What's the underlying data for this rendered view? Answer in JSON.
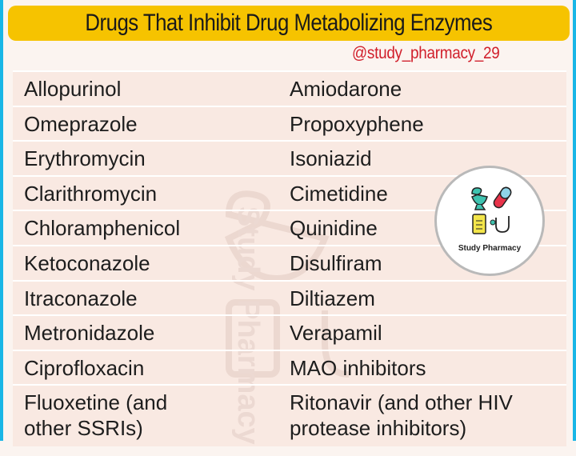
{
  "title": "Drugs That Inhibit Drug Metabolizing Enzymes",
  "handle": "@study_pharmacy_29",
  "watermark": "Study Pharmacy",
  "badge": {
    "label": "Study Pharmacy",
    "icons": [
      "bowl-of-hygieia-icon",
      "pill-capsule-icon",
      "clipboard-icon",
      "stethoscope-icon"
    ]
  },
  "colors": {
    "title_bg": "#f6c300",
    "handle": "#d1202c",
    "border": "#19b6e6",
    "table_bg": "#f9e9e2"
  },
  "rows": [
    {
      "left": "Allopurinol",
      "right": "Amiodarone"
    },
    {
      "left": "Omeprazole",
      "right": "Propoxyphene"
    },
    {
      "left": "Erythromycin",
      "right": "Isoniazid"
    },
    {
      "left": "Clarithromycin",
      "right": "Cimetidine"
    },
    {
      "left": "Chloramphenicol",
      "right": "Quinidine"
    },
    {
      "left": "Ketoconazole",
      "right": "Disulfiram"
    },
    {
      "left": "Itraconazole",
      "right": "Diltiazem"
    },
    {
      "left": "Metronidazole",
      "right": "Verapamil"
    },
    {
      "left": "Ciprofloxacin",
      "right": "MAO inhibitors"
    },
    {
      "left": "Fluoxetine (and other SSRIs)",
      "right": "Ritonavir (and other HIV protease inhibitors)"
    }
  ]
}
